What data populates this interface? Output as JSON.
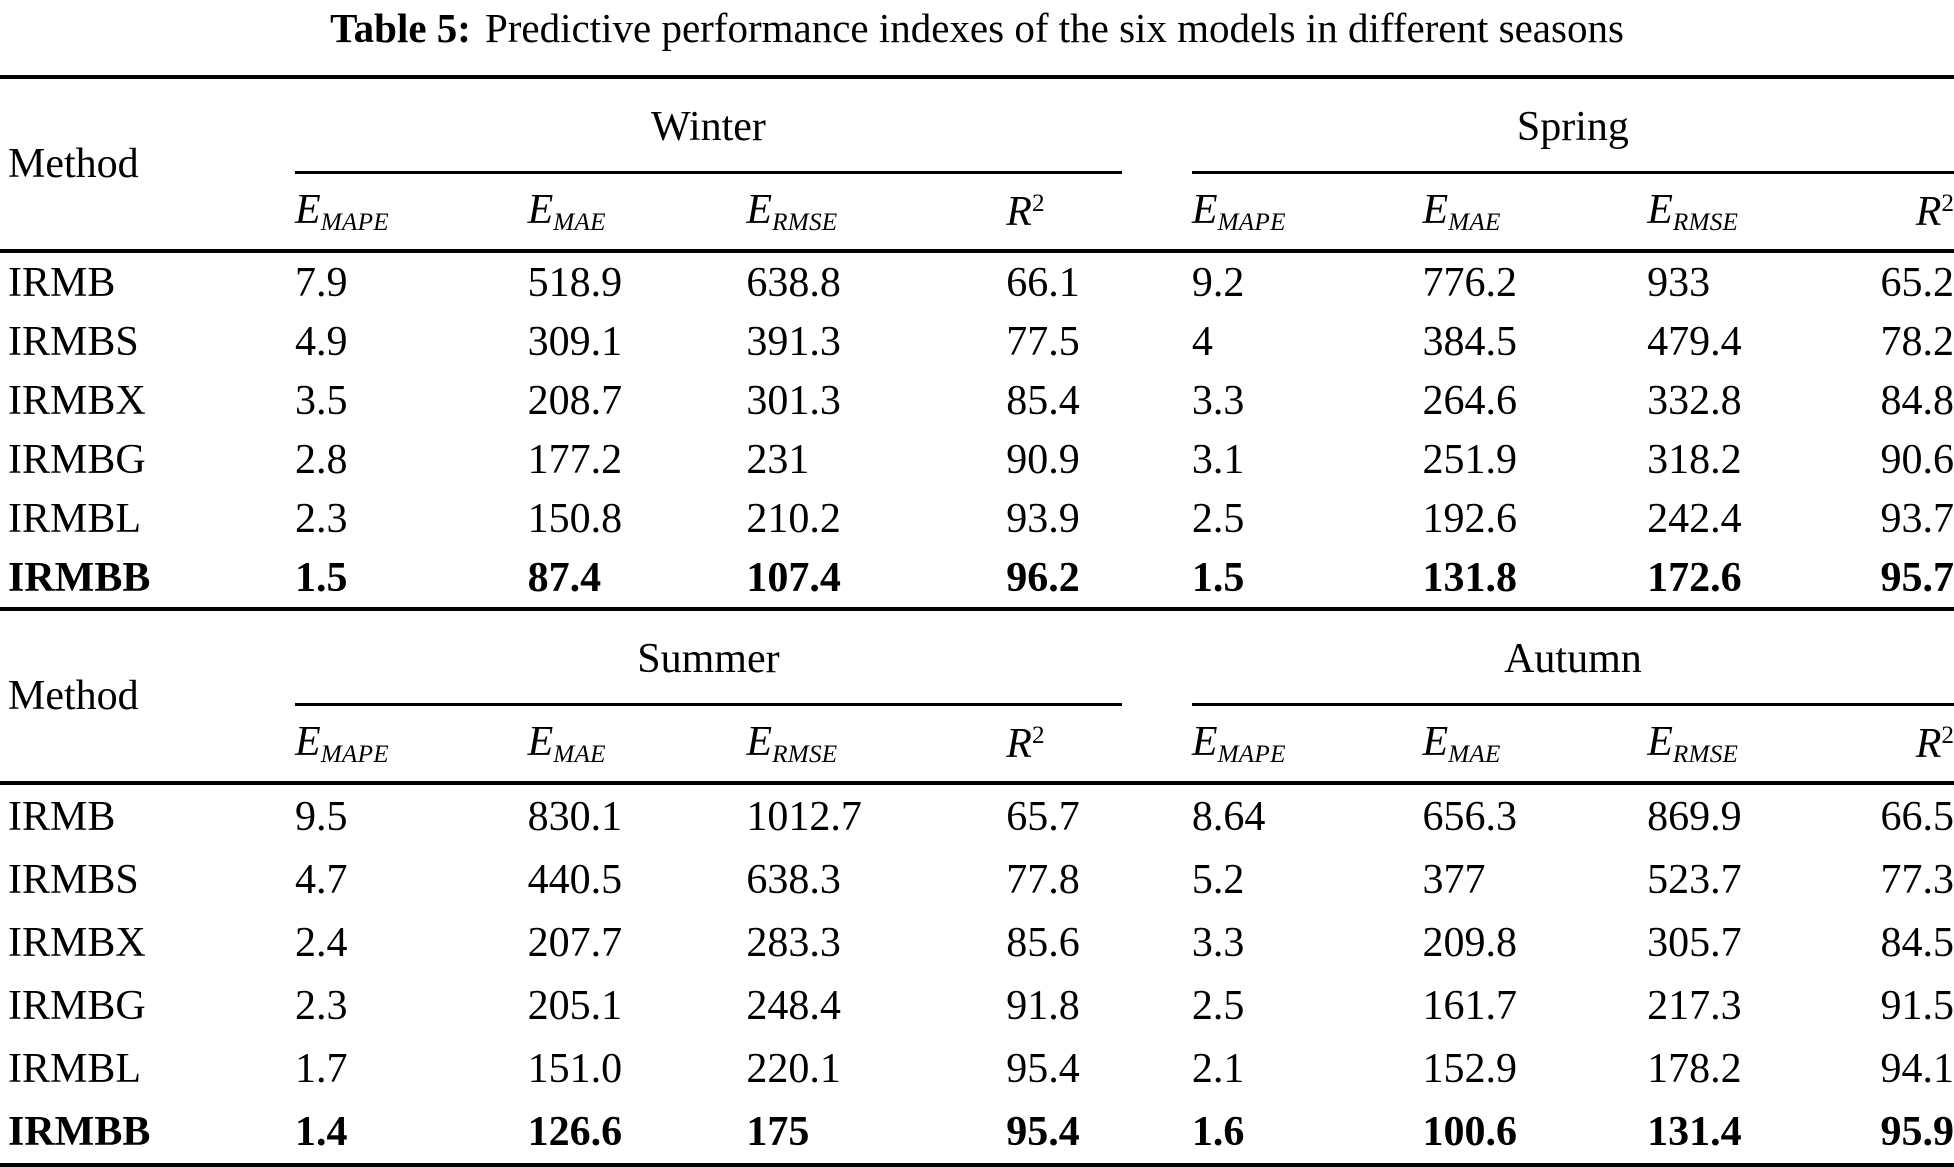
{
  "caption": {
    "label": "Table 5:",
    "text": "Predictive performance indexes of the six models in different seasons"
  },
  "metrics": [
    {
      "base": "E",
      "sub": "MAPE"
    },
    {
      "base": "E",
      "sub": "MAE"
    },
    {
      "base": "E",
      "sub": "RMSE"
    },
    {
      "base": "R",
      "sup": "2"
    }
  ],
  "tables": [
    {
      "method_header": "Method",
      "seasons": [
        "Winter",
        "Spring"
      ],
      "rows": [
        {
          "method": "IRMB",
          "bold": false,
          "values": [
            "7.9",
            "518.9",
            "638.8",
            "66.1",
            "9.2",
            "776.2",
            "933",
            "65.2"
          ]
        },
        {
          "method": "IRMBS",
          "bold": false,
          "values": [
            "4.9",
            "309.1",
            "391.3",
            "77.5",
            "4",
            "384.5",
            "479.4",
            "78.2"
          ]
        },
        {
          "method": "IRMBX",
          "bold": false,
          "values": [
            "3.5",
            "208.7",
            "301.3",
            "85.4",
            "3.3",
            "264.6",
            "332.8",
            "84.8"
          ]
        },
        {
          "method": "IRMBG",
          "bold": false,
          "values": [
            "2.8",
            "177.2",
            "231",
            "90.9",
            "3.1",
            "251.9",
            "318.2",
            "90.6"
          ]
        },
        {
          "method": "IRMBL",
          "bold": false,
          "values": [
            "2.3",
            "150.8",
            "210.2",
            "93.9",
            "2.5",
            "192.6",
            "242.4",
            "93.7"
          ]
        },
        {
          "method": "IRMBB",
          "bold": true,
          "values": [
            "1.5",
            "87.4",
            "107.4",
            "96.2",
            "1.5",
            "131.8",
            "172.6",
            "95.7"
          ]
        }
      ]
    },
    {
      "method_header": "Method",
      "seasons": [
        "Summer",
        "Autumn"
      ],
      "rows": [
        {
          "method": "IRMB",
          "bold": false,
          "values": [
            "9.5",
            "830.1",
            "1012.7",
            "65.7",
            "8.64",
            "656.3",
            "869.9",
            "66.5"
          ]
        },
        {
          "method": "IRMBS",
          "bold": false,
          "values": [
            "4.7",
            "440.5",
            "638.3",
            "77.8",
            "5.2",
            "377",
            "523.7",
            "77.3"
          ]
        },
        {
          "method": "IRMBX",
          "bold": false,
          "values": [
            "2.4",
            "207.7",
            "283.3",
            "85.6",
            "3.3",
            "209.8",
            "305.7",
            "84.5"
          ]
        },
        {
          "method": "IRMBG",
          "bold": false,
          "values": [
            "2.3",
            "205.1",
            "248.4",
            "91.8",
            "2.5",
            "161.7",
            "217.3",
            "91.5"
          ]
        },
        {
          "method": "IRMBL",
          "bold": false,
          "values": [
            "1.7",
            "151.0",
            "220.1",
            "95.4",
            "2.1",
            "152.9",
            "178.2",
            "94.1"
          ]
        },
        {
          "method": "IRMBB",
          "bold": true,
          "values": [
            "1.4",
            "126.6",
            "175",
            "95.4",
            "1.6",
            "100.6",
            "131.4",
            "95.9"
          ]
        }
      ]
    }
  ]
}
